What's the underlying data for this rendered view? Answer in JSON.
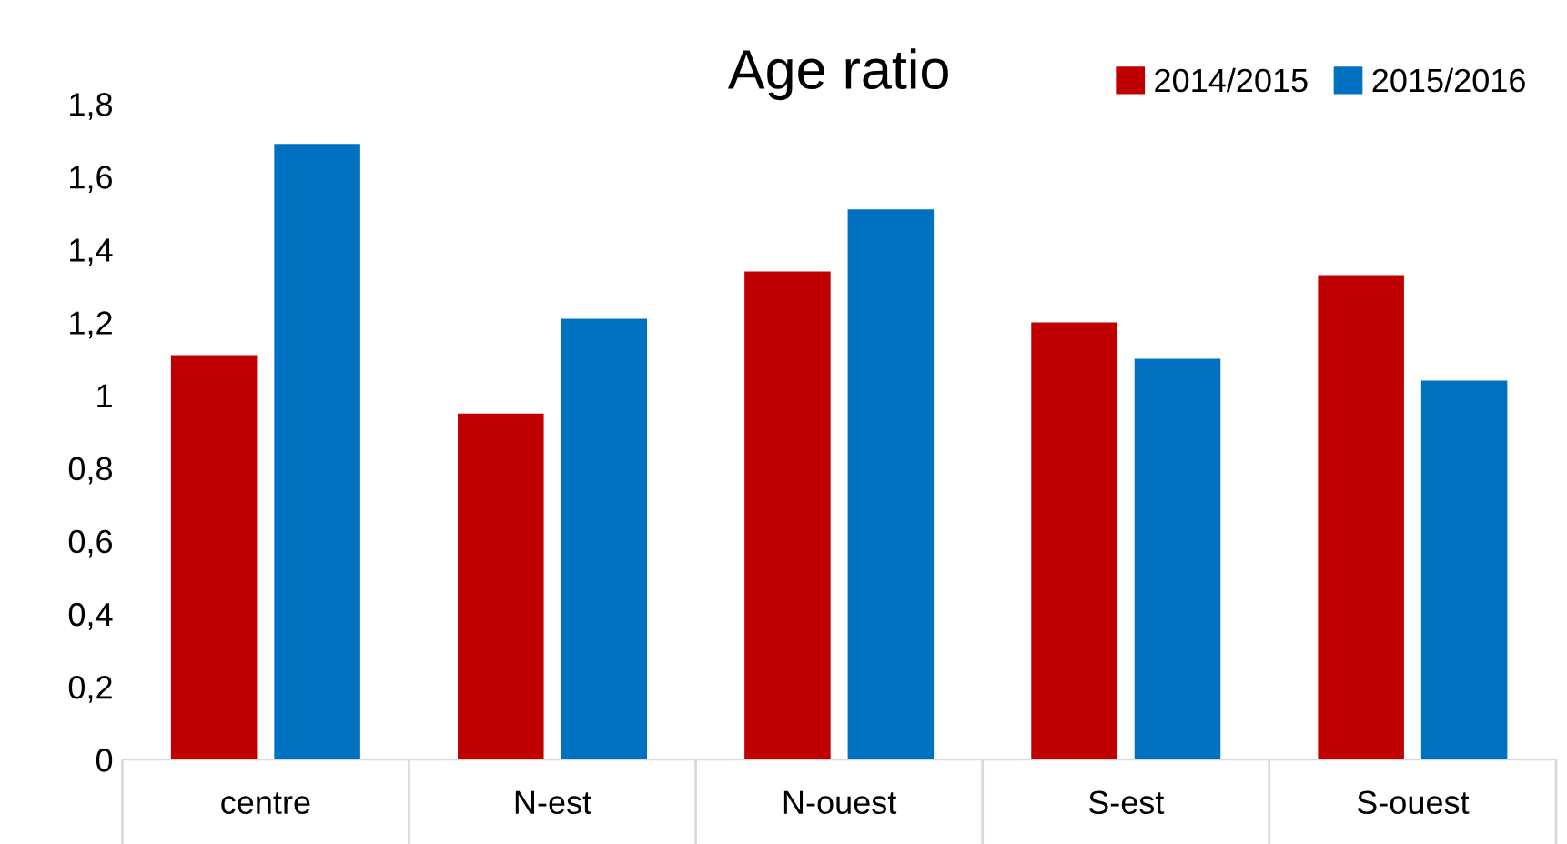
{
  "chart_data": {
    "type": "bar",
    "title": "Age ratio",
    "categories": [
      "centre",
      "N-est",
      "N-ouest",
      "S-est",
      "S-ouest"
    ],
    "series": [
      {
        "name": "2014/2015",
        "color": "#c00000",
        "values": [
          1.11,
          0.95,
          1.34,
          1.2,
          1.33
        ]
      },
      {
        "name": "2015/2016",
        "color": "#0070c0",
        "values": [
          1.69,
          1.21,
          1.51,
          1.1,
          1.04
        ]
      }
    ],
    "ylim": [
      0,
      1.8
    ],
    "yticks": [
      0,
      {
        "value": 0.2,
        "label": "0,2"
      },
      {
        "value": 0.4,
        "label": "0,4"
      },
      {
        "value": 0.6,
        "label": "0,6"
      },
      {
        "value": 0.8,
        "label": "0,8"
      },
      1,
      {
        "value": 1.2,
        "label": "1,2"
      },
      {
        "value": 1.4,
        "label": "1,4"
      },
      {
        "value": 1.6,
        "label": "1,6"
      },
      {
        "value": 1.8,
        "label": "1,8"
      }
    ],
    "grid": false,
    "legend": "top right"
  }
}
